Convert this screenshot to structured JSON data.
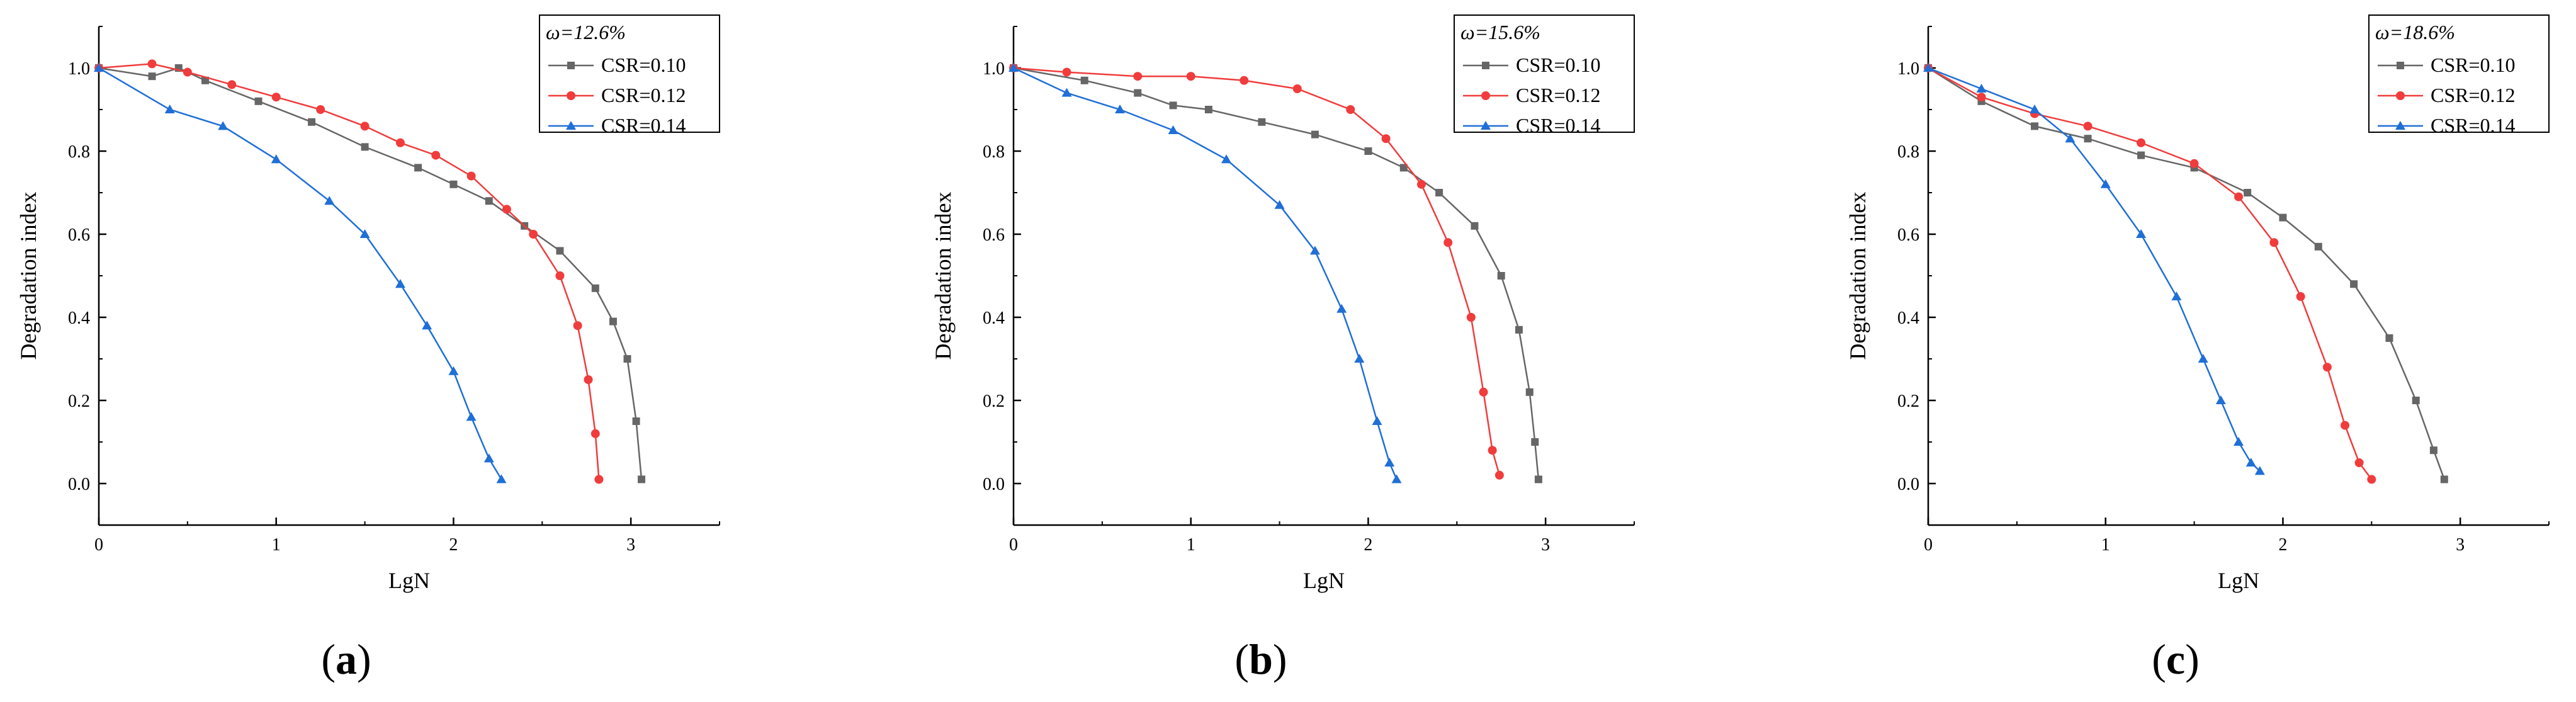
{
  "colors": {
    "series": [
      "#666666",
      "#F03C3C",
      "#1F6FD6"
    ],
    "axis": "#000000",
    "legend_border": "#000000"
  },
  "chart_data": [
    {
      "type": "line",
      "panel_label": "a",
      "legend_title": "ω=12.6%",
      "xlabel": "LgN",
      "ylabel": "Degradation index",
      "xlim": [
        0,
        3.5
      ],
      "ylim": [
        -0.1,
        1.1
      ],
      "xticks": [
        "0",
        "1",
        "2",
        "3"
      ],
      "yticks": [
        "0.0",
        "0.2",
        "0.4",
        "0.6",
        "0.8",
        "1.0"
      ],
      "legend_position": "top-right",
      "series": [
        {
          "name": "CSR=0.10",
          "marker": "square",
          "x": [
            0,
            0.3,
            0.45,
            0.6,
            0.9,
            1.2,
            1.5,
            1.8,
            2.0,
            2.2,
            2.4,
            2.6,
            2.8,
            2.9,
            2.98,
            3.03,
            3.06
          ],
          "y": [
            1.0,
            0.98,
            1.0,
            0.97,
            0.92,
            0.87,
            0.81,
            0.76,
            0.72,
            0.68,
            0.62,
            0.56,
            0.47,
            0.39,
            0.3,
            0.15,
            0.01
          ]
        },
        {
          "name": "CSR=0.12",
          "marker": "circle",
          "x": [
            0,
            0.3,
            0.5,
            0.75,
            1.0,
            1.25,
            1.5,
            1.7,
            1.9,
            2.1,
            2.3,
            2.45,
            2.6,
            2.7,
            2.76,
            2.8,
            2.82
          ],
          "y": [
            1.0,
            1.01,
            0.99,
            0.96,
            0.93,
            0.9,
            0.86,
            0.82,
            0.79,
            0.74,
            0.66,
            0.6,
            0.5,
            0.38,
            0.25,
            0.12,
            0.01
          ]
        },
        {
          "name": "CSR=0.14",
          "marker": "triangle",
          "x": [
            0,
            0.4,
            0.7,
            1.0,
            1.3,
            1.5,
            1.7,
            1.85,
            2.0,
            2.1,
            2.2,
            2.27
          ],
          "y": [
            1.0,
            0.9,
            0.86,
            0.78,
            0.68,
            0.6,
            0.48,
            0.38,
            0.27,
            0.16,
            0.06,
            0.01
          ]
        }
      ]
    },
    {
      "type": "line",
      "panel_label": "b",
      "legend_title": "ω=15.6%",
      "xlabel": "LgN",
      "ylabel": "Degradation index",
      "xlim": [
        0,
        3.5
      ],
      "ylim": [
        -0.1,
        1.1
      ],
      "xticks": [
        "0",
        "1",
        "2",
        "3"
      ],
      "yticks": [
        "0.0",
        "0.2",
        "0.4",
        "0.6",
        "0.8",
        "1.0"
      ],
      "legend_position": "top-right",
      "series": [
        {
          "name": "CSR=0.10",
          "marker": "square",
          "x": [
            0,
            0.4,
            0.7,
            0.9,
            1.1,
            1.4,
            1.7,
            2.0,
            2.2,
            2.4,
            2.6,
            2.75,
            2.85,
            2.91,
            2.94,
            2.96
          ],
          "y": [
            1.0,
            0.97,
            0.94,
            0.91,
            0.9,
            0.87,
            0.84,
            0.8,
            0.76,
            0.7,
            0.62,
            0.5,
            0.37,
            0.22,
            0.1,
            0.01
          ]
        },
        {
          "name": "CSR=0.12",
          "marker": "circle",
          "x": [
            0,
            0.3,
            0.7,
            1.0,
            1.3,
            1.6,
            1.9,
            2.1,
            2.3,
            2.45,
            2.58,
            2.65,
            2.7,
            2.74
          ],
          "y": [
            1.0,
            0.99,
            0.98,
            0.98,
            0.97,
            0.95,
            0.9,
            0.83,
            0.72,
            0.58,
            0.4,
            0.22,
            0.08,
            0.02
          ]
        },
        {
          "name": "CSR=0.14",
          "marker": "triangle",
          "x": [
            0,
            0.3,
            0.6,
            0.9,
            1.2,
            1.5,
            1.7,
            1.85,
            1.95,
            2.05,
            2.12,
            2.16
          ],
          "y": [
            1.0,
            0.94,
            0.9,
            0.85,
            0.78,
            0.67,
            0.56,
            0.42,
            0.3,
            0.15,
            0.05,
            0.01
          ]
        }
      ]
    },
    {
      "type": "line",
      "panel_label": "c",
      "legend_title": "ω=18.6%",
      "xlabel": "LgN",
      "ylabel": "Degradation index",
      "xlim": [
        0,
        3.5
      ],
      "ylim": [
        -0.1,
        1.1
      ],
      "xticks": [
        "0",
        "1",
        "2",
        "3"
      ],
      "yticks": [
        "0.0",
        "0.2",
        "0.4",
        "0.6",
        "0.8",
        "1.0"
      ],
      "legend_position": "top-right",
      "series": [
        {
          "name": "CSR=0.10",
          "marker": "square",
          "x": [
            0,
            0.3,
            0.6,
            0.9,
            1.2,
            1.5,
            1.8,
            2.0,
            2.2,
            2.4,
            2.6,
            2.75,
            2.85,
            2.91
          ],
          "y": [
            1.0,
            0.92,
            0.86,
            0.83,
            0.79,
            0.76,
            0.7,
            0.64,
            0.57,
            0.48,
            0.35,
            0.2,
            0.08,
            0.01
          ]
        },
        {
          "name": "CSR=0.12",
          "marker": "circle",
          "x": [
            0,
            0.3,
            0.6,
            0.9,
            1.2,
            1.5,
            1.75,
            1.95,
            2.1,
            2.25,
            2.35,
            2.43,
            2.5
          ],
          "y": [
            1.0,
            0.93,
            0.89,
            0.86,
            0.82,
            0.77,
            0.69,
            0.58,
            0.45,
            0.28,
            0.14,
            0.05,
            0.01
          ]
        },
        {
          "name": "CSR=0.14",
          "marker": "triangle",
          "x": [
            0,
            0.3,
            0.6,
            0.8,
            1.0,
            1.2,
            1.4,
            1.55,
            1.65,
            1.75,
            1.82,
            1.87
          ],
          "y": [
            1.0,
            0.95,
            0.9,
            0.83,
            0.72,
            0.6,
            0.45,
            0.3,
            0.2,
            0.1,
            0.05,
            0.03
          ]
        }
      ]
    }
  ]
}
